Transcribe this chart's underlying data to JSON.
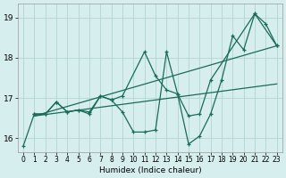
{
  "xlabel": "Humidex (Indice chaleur)",
  "xlim": [
    -0.5,
    23.5
  ],
  "ylim": [
    15.65,
    19.35
  ],
  "yticks": [
    16,
    17,
    18,
    19
  ],
  "xticks": [
    0,
    1,
    2,
    3,
    4,
    5,
    6,
    7,
    8,
    9,
    10,
    11,
    12,
    13,
    14,
    15,
    16,
    17,
    18,
    19,
    20,
    21,
    22,
    23
  ],
  "bg_color": "#d6eeed",
  "grid_color": "#b8d8d6",
  "line_color": "#1a6b5a",
  "lines": [
    {
      "x": [
        0,
        1,
        2,
        3,
        4,
        5,
        6,
        7,
        8,
        9,
        10,
        11,
        12,
        13,
        14,
        15,
        16,
        17,
        18,
        19,
        20,
        21,
        22,
        23
      ],
      "y": [
        15.8,
        16.6,
        16.6,
        16.9,
        16.65,
        16.7,
        16.65,
        17.05,
        16.95,
        16.65,
        16.15,
        16.15,
        16.2,
        18.15,
        17.1,
        15.85,
        16.05,
        16.6,
        17.45,
        18.55,
        18.2,
        19.1,
        18.85,
        18.3
      ]
    },
    {
      "x": [
        1,
        2,
        3,
        4,
        5,
        6,
        7,
        8,
        9,
        11,
        12,
        13,
        14,
        15,
        16,
        17,
        21,
        23
      ],
      "y": [
        16.6,
        16.6,
        16.9,
        16.65,
        16.7,
        16.6,
        17.05,
        16.95,
        17.05,
        18.15,
        17.55,
        17.2,
        17.1,
        16.55,
        16.6,
        17.45,
        19.1,
        18.3
      ]
    },
    {
      "x": [
        1,
        23
      ],
      "y": [
        16.55,
        18.3
      ]
    },
    {
      "x": [
        1,
        23
      ],
      "y": [
        16.55,
        17.35
      ]
    }
  ]
}
